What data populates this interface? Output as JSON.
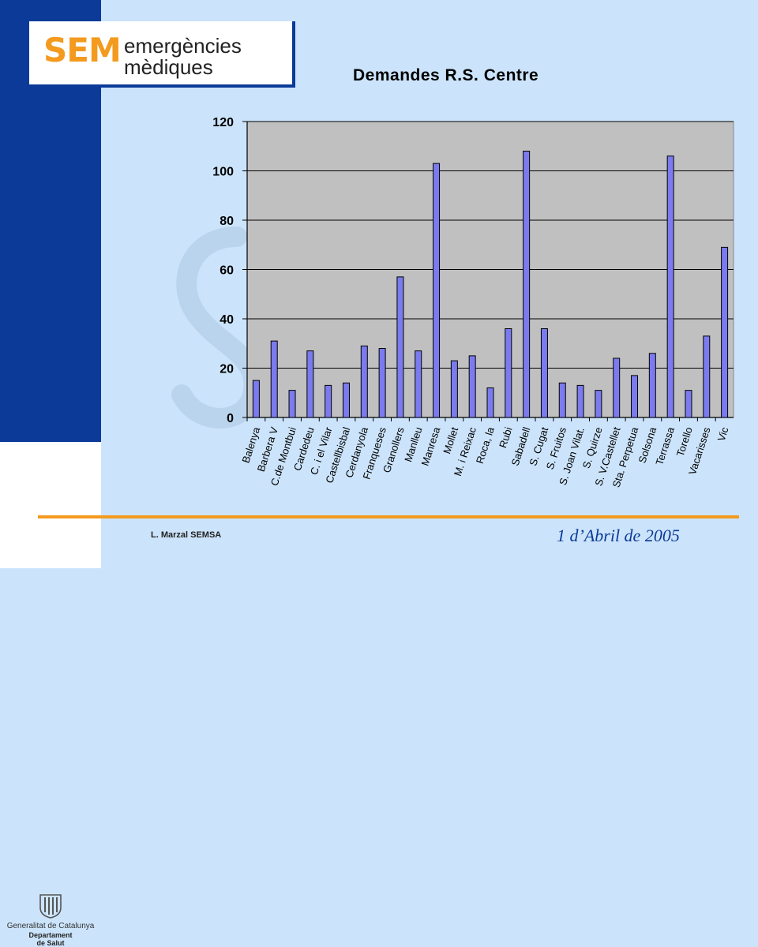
{
  "header": {
    "logo_mark": "SEM",
    "logo_line1": "emergències",
    "logo_line2": "mèdiques"
  },
  "footer": {
    "gov_name": "Generalitat de Catalunya",
    "gov_dept_line1": "Departament",
    "gov_dept_line2": "de Salut",
    "author": "L. Marzal SEMSA",
    "date": "1 d’Abril de 2005"
  },
  "colors": {
    "sidebar": "#0b3a99",
    "background": "#cce4fb",
    "accent": "#f39a1f",
    "plot_area": "#c0c0c0",
    "bar_fill": "#7b7bef"
  },
  "chart_data": {
    "type": "bar",
    "title": "Demandes R.S. Centre",
    "xlabel": "",
    "ylabel": "",
    "ylim": [
      0,
      120
    ],
    "yticks": [
      0,
      20,
      40,
      60,
      80,
      100,
      120
    ],
    "grid": true,
    "legend": "none",
    "categories": [
      "Balenya",
      "Barbera V",
      "C.de Montbui",
      "Cardedeu",
      "C. i el Vilar",
      "Castellbisbal",
      "Cerdanyola",
      "Franqueses",
      "Granollers",
      "Manlleu",
      "Manresa",
      "Mollet",
      "M. i Reixac",
      "Roca, la",
      "Rubi",
      "Sabadell",
      "S. Cugat",
      "S. Fruitos",
      "S. Joan Vilat.",
      "S. Quirze",
      "S. V.Castellet",
      "Sta. Perpetua",
      "Solsona",
      "Terrassa",
      "Torello",
      "Vacarisses",
      "Vic"
    ],
    "values": [
      15,
      31,
      11,
      27,
      13,
      14,
      29,
      28,
      57,
      27,
      103,
      23,
      25,
      12,
      36,
      108,
      36,
      14,
      13,
      11,
      24,
      17,
      26,
      106,
      11,
      33,
      69
    ]
  }
}
